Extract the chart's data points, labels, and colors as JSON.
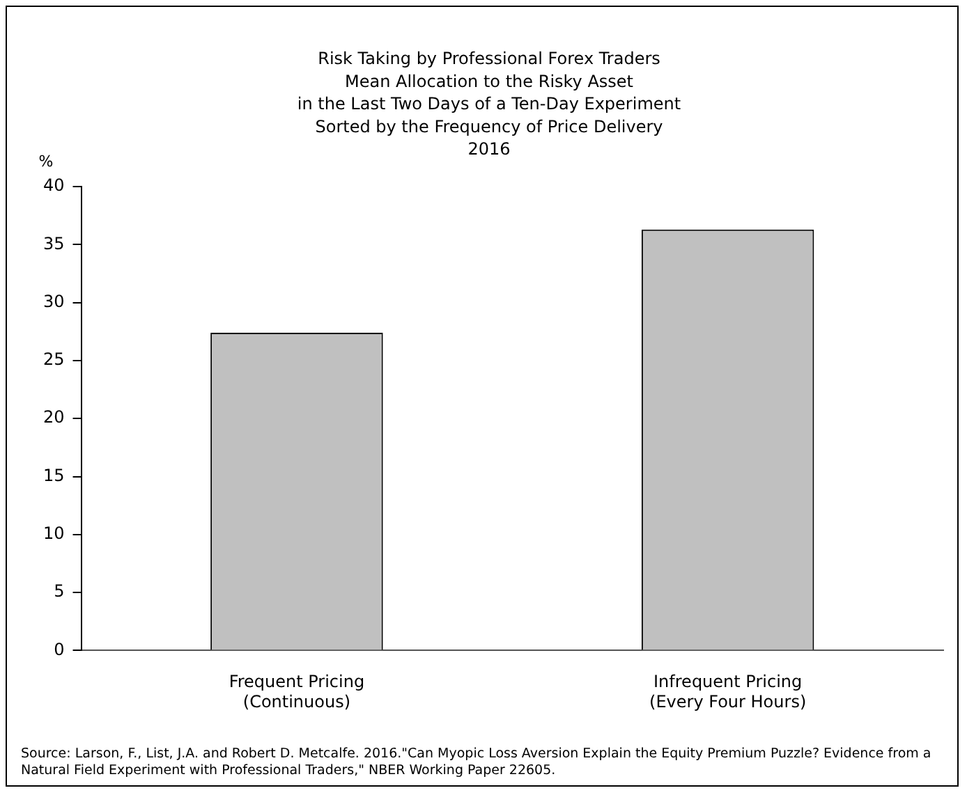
{
  "chart_data": {
    "type": "bar",
    "title": "Risk Taking by Professional Forex Traders\nMean Allocation to the Risky Asset\nin the Last Two Days of a Ten-Day Experiment\nSorted by the Frequency of Price Delivery\n2016",
    "ylabel": "%",
    "categories": [
      "Frequent Pricing\n(Continuous)",
      "Infrequent Pricing\n(Every Four Hours)"
    ],
    "values": [
      27.4,
      36.3
    ],
    "color": "#c0c0c0",
    "ylim": [
      0,
      40
    ],
    "yticks": [
      0,
      5,
      10,
      15,
      20,
      25,
      30,
      35,
      40
    ],
    "grid": false,
    "legend": false,
    "annotations": [
      "Source: Larson, F., List, J.A. and Robert D. Metcalfe. 2016.\"Can Myopic Loss Aversion Explain the Equity Premium Puzzle? Evidence from a Natural Field Experiment with Professional Traders,\" NBER Working Paper 22605."
    ]
  }
}
